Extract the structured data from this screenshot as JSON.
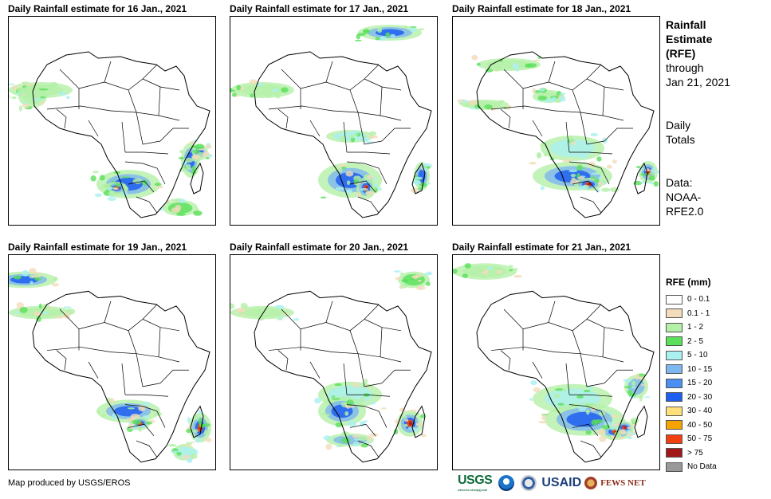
{
  "panels": [
    {
      "title": "Daily Rainfall estimate for 16 Jan., 2021"
    },
    {
      "title": "Daily Rainfall estimate for 17 Jan., 2021"
    },
    {
      "title": "Daily Rainfall estimate for 18 Jan., 2021"
    },
    {
      "title": "Daily Rainfall estimate for 19 Jan., 2021"
    },
    {
      "title": "Daily Rainfall estimate for 20 Jan., 2021"
    },
    {
      "title": "Daily Rainfall estimate for 21 Jan., 2021"
    }
  ],
  "side": {
    "title_line1": "Rainfall",
    "title_line2": "Estimate",
    "title_line3": "(RFE)",
    "through_label": "through",
    "through_date": "Jan 21, 2021",
    "totals_line1": "Daily",
    "totals_line2": "Totals",
    "data_line1": "Data:",
    "data_line2": "NOAA-",
    "data_line3": "RFE2.0"
  },
  "legend": {
    "title": "RFE (mm)",
    "items": [
      {
        "label": "0 - 0.1",
        "color": "#ffffff"
      },
      {
        "label": "0.1 - 1",
        "color": "#f2dcbc"
      },
      {
        "label": "1 - 2",
        "color": "#b4f0a8"
      },
      {
        "label": "2 - 5",
        "color": "#5ae05a"
      },
      {
        "label": "5 - 10",
        "color": "#aaf0f0"
      },
      {
        "label": "10 - 15",
        "color": "#7eb6f0"
      },
      {
        "label": "15 - 20",
        "color": "#4b8ff0"
      },
      {
        "label": "20 - 30",
        "color": "#1e5ff0"
      },
      {
        "label": "30 - 40",
        "color": "#fde07a"
      },
      {
        "label": "40 - 50",
        "color": "#f5a300"
      },
      {
        "label": "50 - 75",
        "color": "#f04010"
      },
      {
        "label": "> 75",
        "color": "#a01818"
      },
      {
        "label": "No Data",
        "color": "#999999"
      }
    ]
  },
  "credit": "Map produced by USGS/EROS",
  "logos": {
    "usgs": "USGS",
    "usgs_tagline": "science for a changing world",
    "usaid": "USAID",
    "fews": "FEWS NET"
  }
}
